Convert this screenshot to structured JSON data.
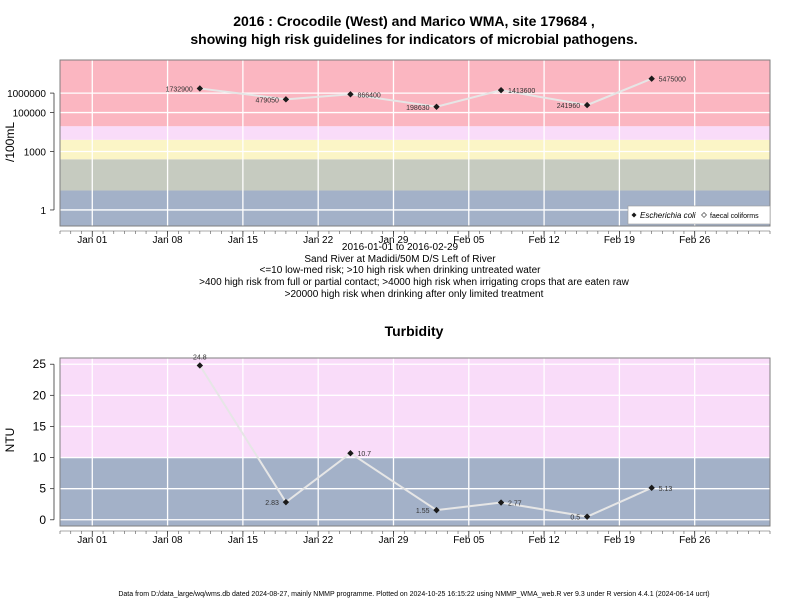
{
  "page": {
    "title_line1": "2016 : Crocodile (West) and Marico WMA, site 179684 ,",
    "title_line2": "showing high risk guidelines for indicators of microbial pathogens.",
    "footer": "Data from D:/data_large/wq/wms.db dated 2024-08-27, mainly NMMP programme. Plotted on 2024-10-25 16:15:22 using NMMP_WMA_web.R ver 9.3 under R version 4.4.1 (2024-06-14 ucrt)"
  },
  "chart_data": [
    {
      "type": "scatter",
      "ylabel": "/100mL",
      "yscale": "log",
      "ylim": [
        0.15,
        50000000
      ],
      "y_ticks": [
        1,
        1000,
        100000,
        1000000
      ],
      "y_tick_labels": [
        "1",
        "1000",
        "100000",
        "1000000"
      ],
      "x_ticks": [
        "2016-01-01",
        "2016-01-08",
        "2016-01-15",
        "2016-01-22",
        "2016-01-29",
        "2016-02-05",
        "2016-02-12",
        "2016-02-19",
        "2016-02-26"
      ],
      "x_tick_labels": [
        "Jan 01",
        "Jan 08",
        "Jan 15",
        "Jan 22",
        "Jan 29",
        "Feb 05",
        "Feb 12",
        "Feb 19",
        "Feb 26"
      ],
      "xlim": [
        "2015-12-29",
        "2016-03-04"
      ],
      "grid": true,
      "bands": [
        {
          "from": 0.15,
          "to": 10,
          "color": "#a3b1c8"
        },
        {
          "from": 10,
          "to": 400,
          "color": "#c6cbc0"
        },
        {
          "from": 400,
          "to": 4000,
          "color": "#fbf5c6"
        },
        {
          "from": 4000,
          "to": 20000,
          "color": "#f9dcf9"
        },
        {
          "from": 20000,
          "to": 50000000,
          "color": "#fbb6c1"
        }
      ],
      "series": [
        {
          "name": "Escherichia coli",
          "x": [
            "2016-01-11",
            "2016-01-19",
            "2016-01-25",
            "2016-02-02",
            "2016-02-08",
            "2016-02-16",
            "2016-02-22"
          ],
          "values": [
            1732900,
            479050,
            866400,
            198630,
            1413600,
            241960,
            5475000
          ],
          "labels": [
            "1732900",
            "479050",
            "866400",
            "198630",
            "1413600",
            "241960",
            "5475000"
          ]
        }
      ],
      "legend": {
        "position": "bottom-right",
        "entries": [
          "Escherichia coli",
          "faecal coliforms"
        ]
      },
      "notes": [
        "2016-01-01 to 2016-02-29",
        "Sand River at Madidi/50M D/S Left of River",
        "<=10 low-med risk; >10 high risk when drinking untreated water",
        ">400 high risk from full or partial contact; >4000 high risk when irrigating crops that are eaten raw",
        ">20000 high risk when drinking after only limited treatment"
      ]
    },
    {
      "type": "line",
      "title": "Turbidity",
      "ylabel": "NTU",
      "ylim": [
        -1,
        26
      ],
      "y_ticks": [
        0,
        5,
        10,
        15,
        20,
        25
      ],
      "x_ticks": [
        "2016-01-01",
        "2016-01-08",
        "2016-01-15",
        "2016-01-22",
        "2016-01-29",
        "2016-02-05",
        "2016-02-12",
        "2016-02-19",
        "2016-02-26"
      ],
      "x_tick_labels": [
        "Jan 01",
        "Jan 08",
        "Jan 15",
        "Jan 22",
        "Jan 29",
        "Feb 05",
        "Feb 12",
        "Feb 19",
        "Feb 26"
      ],
      "xlim": [
        "2015-12-29",
        "2016-03-04"
      ],
      "grid": true,
      "bands": [
        {
          "from": -1,
          "to": 10,
          "color": "#a3b1c8"
        },
        {
          "from": 10,
          "to": 26,
          "color": "#f9dcf9"
        }
      ],
      "series": [
        {
          "x": [
            "2016-01-11",
            "2016-01-19",
            "2016-01-25",
            "2016-02-02",
            "2016-02-08",
            "2016-02-16",
            "2016-02-22"
          ],
          "values": [
            24.8,
            2.83,
            10.7,
            1.55,
            2.77,
            0.5,
            5.13
          ],
          "labels": [
            "24.8",
            "2.83",
            "10.7",
            "1.55",
            "2.77",
            "0.5",
            "5.13"
          ]
        }
      ]
    }
  ]
}
